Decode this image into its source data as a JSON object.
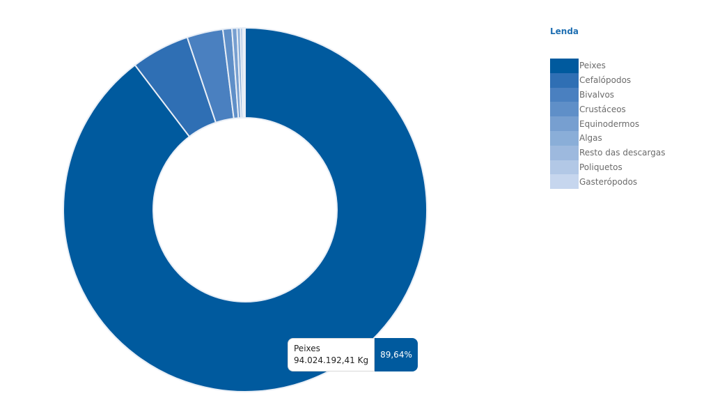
{
  "chart_data": {
    "type": "pie",
    "legend_title": "Lenda",
    "legend_position": "top-right",
    "slices": [
      {
        "label": "Peixes",
        "value": 89.64,
        "color": "#005a9e"
      },
      {
        "label": "Cefalópodos",
        "value": 5.2,
        "color": "#2f6fb4"
      },
      {
        "label": "Bivalvos",
        "value": 3.2,
        "color": "#4a80c0"
      },
      {
        "label": "Crustáceos",
        "value": 0.8,
        "color": "#5f8fc8"
      },
      {
        "label": "Equinodermos",
        "value": 0.45,
        "color": "#779fd0"
      },
      {
        "label": "Algas",
        "value": 0.3,
        "color": "#8aaed8"
      },
      {
        "label": "Resto das descargas",
        "value": 0.2,
        "color": "#9db9de"
      },
      {
        "label": "Poliquetos",
        "value": 0.12,
        "color": "#b2c8e6"
      },
      {
        "label": "Gasterópodos",
        "value": 0.09,
        "color": "#c6d6ee"
      }
    ],
    "tooltip": {
      "label": "Peixes",
      "value": "94.024.192,41 Kg",
      "percent": "89,64%"
    }
  }
}
